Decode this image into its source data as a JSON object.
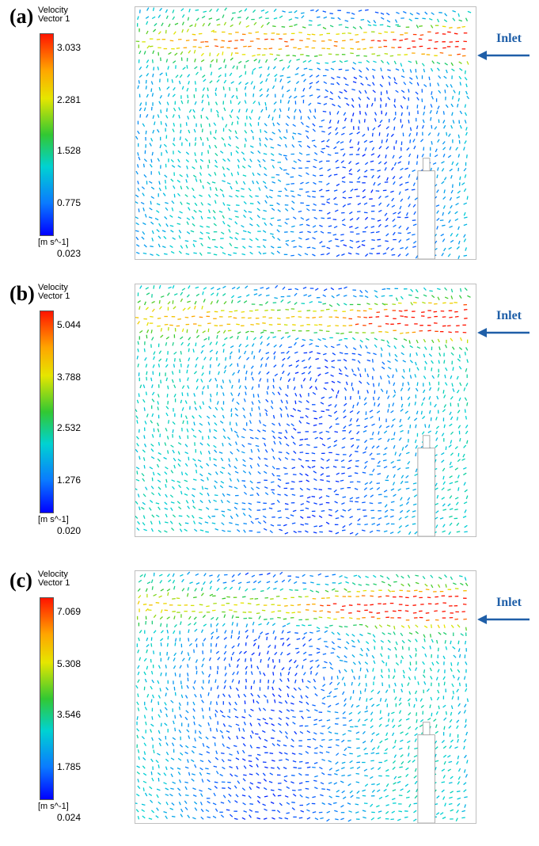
{
  "legend_title_line1": "Velocity",
  "legend_title_line2": "Vector 1",
  "unit": "[m s^-1]",
  "inlet": "Inlet",
  "colors": {
    "inlet_arrow": "#1f5fa8",
    "frame": "#bfbfbf"
  },
  "panels": [
    {
      "label": "(a)",
      "ticks": [
        "3.033",
        "2.281",
        "1.528",
        "0.775",
        "0.023"
      ]
    },
    {
      "label": "(b)",
      "ticks": [
        "5.044",
        "3.788",
        "2.532",
        "1.276",
        "0.020"
      ]
    },
    {
      "label": "(c)",
      "ticks": [
        "7.069",
        "5.308",
        "3.546",
        "1.785",
        "0.024"
      ]
    }
  ]
}
